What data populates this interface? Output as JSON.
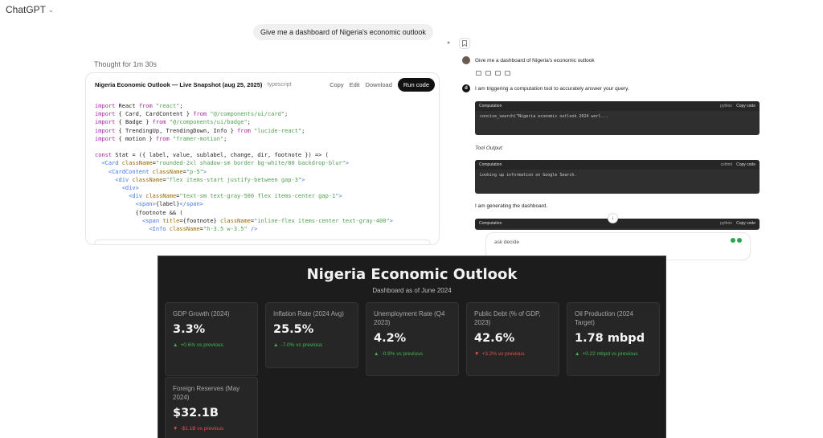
{
  "app": {
    "title": "ChatGPT"
  },
  "conversation": {
    "user_message": "Give me a dashboard of Nigeria's economic outlook",
    "thought": "Thought for 1m 30s"
  },
  "code_card": {
    "title": "Nigeria Economic Outlook — Live Snapshot (aug 25, 2025)",
    "language": "· typescript",
    "copy_label": "Copy",
    "edit_label": "Edit",
    "download_label": "Download",
    "run_label": "Run code"
  },
  "right_panel": {
    "user_message": "Give me a dashboard of Nigeria's economic outlook",
    "assistant_logo": "d",
    "assistant_message": "I am triggering a computation tool to accurately answer your query.",
    "comp1": {
      "label": "Computation",
      "lang": "python",
      "copy": "Copy code",
      "line": "concise_search(\"Nigeria economic outlook 2024 worl..."
    },
    "tool_output_label": "Tool Output:",
    "comp2": {
      "label": "Computation",
      "lang": "cshtml",
      "copy": "Copy code",
      "line": "Looking up information on Google Search."
    },
    "generating_message": "I am generating the dashboard.",
    "comp3": {
      "label": "Computation",
      "lang": "python",
      "copy": "Copy code"
    },
    "ask_placeholder": "ask decide"
  },
  "dashboard": {
    "title": "Nigeria Economic Outlook",
    "subtitle": "Dashboard as of June 2024",
    "colors": {
      "up": "#3fb950",
      "down": "#e5534b",
      "bg": "#1c1c1c",
      "card": "#262626"
    },
    "stats": [
      {
        "label": "GDP Growth (2024)",
        "value": "3.3%",
        "change": "+0.6% vs previous",
        "dir": "up"
      },
      {
        "label": "Inflation Rate (2024 Avg)",
        "value": "25.5%",
        "change": "-7.0% vs previous",
        "dir": "up"
      },
      {
        "label": "Unemployment Rate (Q4 2023)",
        "value": "4.2%",
        "change": "-0.9% vs previous",
        "dir": "up"
      },
      {
        "label": "Public Debt (% of GDP, 2023)",
        "value": "42.6%",
        "change": "+3.2% vs previous",
        "dir": "down"
      },
      {
        "label": "Oil Production (2024 Target)",
        "value": "1.78 mbpd",
        "change": "+0.22 mbpd vs previous",
        "dir": "up"
      },
      {
        "label": "Foreign Reserves (May 2024)",
        "value": "$32.1B",
        "change": "-$1.1B vs previous",
        "dir": "down"
      }
    ]
  }
}
